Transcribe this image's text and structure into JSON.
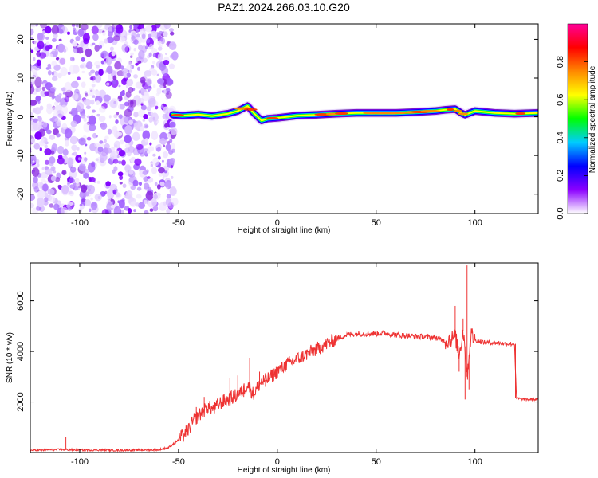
{
  "figure": {
    "title": "PAZ1.2024.266.03.10.G20"
  },
  "chart_data": [
    {
      "type": "heatmap",
      "name": "spectrogram",
      "xlabel": "Height of straight line (km)",
      "ylabel": "Frequency (Hz)",
      "xlim": [
        -125,
        132
      ],
      "ylim": [
        -25,
        24
      ],
      "xticks": [
        -100,
        -50,
        0,
        50,
        100
      ],
      "yticks": [
        -20,
        -10,
        0,
        10,
        20
      ],
      "noise_region": [
        -125,
        -53
      ],
      "colorbar": {
        "label": "Normalized spectral amplitude",
        "range": [
          0,
          1
        ],
        "ticks": [
          0.0,
          0.2,
          0.4,
          0.6,
          0.8
        ],
        "tick_labels": [
          "0.0",
          "0.2",
          "0.4",
          "0.6",
          "0.8"
        ],
        "colors": [
          "#ffffff",
          "#8b00ff",
          "#0000ff",
          "#00ccff",
          "#00ff00",
          "#ffff00",
          "#ff8800",
          "#ff0000",
          "#ff0099"
        ]
      },
      "ridge": {
        "x": [
          -53,
          -48,
          -40,
          -33,
          -25,
          -20,
          -15,
          -12,
          -8,
          -5,
          0,
          5,
          10,
          20,
          30,
          40,
          50,
          60,
          70,
          80,
          85,
          90,
          93,
          95,
          100,
          110,
          120,
          132
        ],
        "y": [
          0.5,
          0.3,
          0.6,
          0.2,
          0.8,
          1.5,
          2.8,
          1.0,
          -1.0,
          -0.5,
          -0.3,
          0.0,
          0.3,
          0.5,
          0.8,
          1.0,
          1.0,
          1.0,
          1.2,
          1.5,
          1.8,
          2.0,
          1.0,
          0.5,
          1.5,
          1.0,
          0.8,
          1.0
        ]
      }
    },
    {
      "type": "line",
      "name": "snr",
      "xlabel": "Height of straight line (km)",
      "ylabel": "SNR (10 * v/v)",
      "xlim": [
        -125,
        132
      ],
      "ylim": [
        0,
        7500
      ],
      "xticks": [
        -100,
        -50,
        0,
        50,
        100
      ],
      "yticks": [
        2000,
        4000,
        6000
      ],
      "color": "#ee3333",
      "series": [
        {
          "x": [
            -125,
            -110,
            -100,
            -90,
            -80,
            -70,
            -60,
            -55,
            -50,
            -45,
            -42,
            -38,
            -35,
            -32,
            -30,
            -28,
            -25,
            -22,
            -20,
            -18,
            -15,
            -12,
            -10,
            -8,
            -5,
            0,
            5,
            10,
            15,
            20,
            25,
            30,
            35,
            40,
            45,
            50,
            55,
            60,
            70,
            80,
            85,
            88,
            90,
            92,
            94,
            95,
            96,
            98,
            100,
            105,
            110,
            115,
            120,
            121,
            125,
            132
          ],
          "y": [
            80,
            120,
            100,
            100,
            90,
            100,
            110,
            200,
            500,
            900,
            1300,
            1600,
            1800,
            1700,
            1900,
            2000,
            2100,
            2200,
            2300,
            2400,
            2700,
            2300,
            2600,
            2800,
            2900,
            3200,
            3500,
            3700,
            3900,
            4100,
            4300,
            4500,
            4650,
            4700,
            4700,
            4700,
            4720,
            4650,
            4600,
            4550,
            4400,
            4500,
            4600,
            3900,
            4800,
            4200,
            3000,
            4700,
            4450,
            4350,
            4350,
            4300,
            4300,
            2150,
            2100,
            2100
          ]
        }
      ],
      "spikes": {
        "x": [
          -107,
          -46,
          -41,
          -37,
          -32,
          -27,
          -24,
          -20,
          -17,
          -14,
          -11,
          -9,
          -6,
          90,
          92,
          94,
          95,
          96,
          97
        ],
        "y": [
          600,
          1000,
          1800,
          2200,
          3100,
          2300,
          2950,
          3050,
          2200,
          3750,
          2400,
          3200,
          2600,
          5800,
          3200,
          5300,
          2100,
          7400,
          2500
        ]
      }
    }
  ]
}
